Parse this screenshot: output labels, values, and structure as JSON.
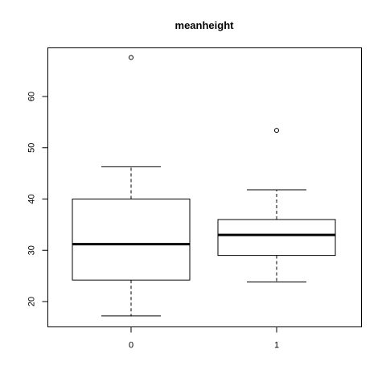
{
  "chart_data": {
    "type": "boxplot",
    "title": "meanheight",
    "xlabel": "",
    "ylabel": "",
    "categories": [
      "0",
      "1"
    ],
    "yticks": [
      20,
      30,
      40,
      50,
      60
    ],
    "ylim": [
      15,
      70
    ],
    "boxes": [
      {
        "category": "0",
        "whisker_low": 17.2,
        "q1": 24.2,
        "median": 31.2,
        "q3": 40.0,
        "whisker_high": 46.3,
        "outliers": [
          67.6
        ]
      },
      {
        "category": "1",
        "whisker_low": 23.8,
        "q1": 29.0,
        "median": 33.0,
        "q3": 36.0,
        "whisker_high": 41.8,
        "outliers": [
          53.4
        ]
      }
    ],
    "grid": false,
    "legend": "none"
  }
}
